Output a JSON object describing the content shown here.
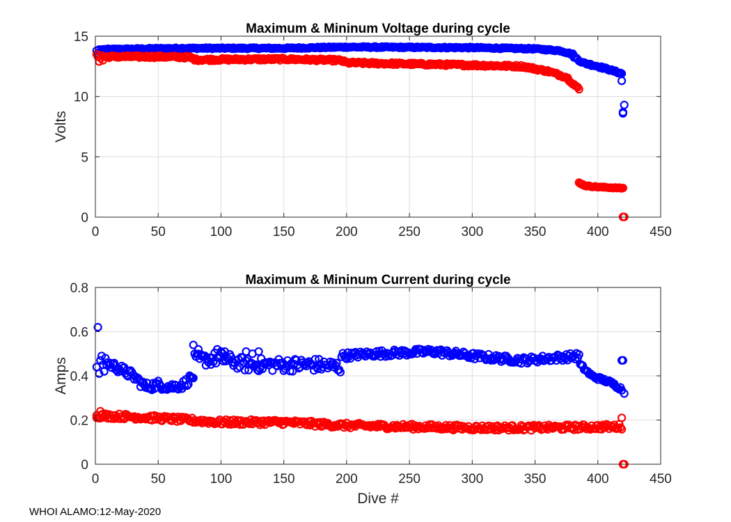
{
  "footer": "WHOI ALAMO:12-May-2020",
  "colors": {
    "max": "#0000ff",
    "min": "#ff0000",
    "grid": "#dcdcdc",
    "axis": "#262626"
  },
  "chart_data": [
    {
      "type": "scatter",
      "title": "Maximum & Mininum Voltage during cycle",
      "xlabel": "",
      "ylabel": "Volts",
      "xlim": [
        0,
        450
      ],
      "ylim": [
        0,
        15
      ],
      "xticks": [
        0,
        50,
        100,
        150,
        200,
        250,
        300,
        350,
        400,
        450
      ],
      "yticks": [
        0,
        5,
        10,
        15
      ],
      "grid": true,
      "series": [
        {
          "name": "Maximum",
          "color": "#0000ff",
          "segments": [
            {
              "x": [
                1,
                2,
                3,
                4,
                5,
                6
              ],
              "y": [
                13.8,
                13.6,
                13.9,
                13.7,
                13.9,
                13.85
              ]
            },
            {
              "x_start": 7,
              "x_end": 380,
              "step": 1,
              "keypoints": [
                [
                  7,
                  13.9
                ],
                [
                  70,
                  14.0
                ],
                [
                  150,
                  14.0
                ],
                [
                  200,
                  14.1
                ],
                [
                  300,
                  14.05
                ],
                [
                  350,
                  13.95
                ],
                [
                  370,
                  13.8
                ],
                [
                  380,
                  13.5
                ]
              ],
              "jitter": 0.06
            },
            {
              "x_start": 381,
              "x_end": 419,
              "step": 1,
              "keypoints": [
                [
                  381,
                  13.3
                ],
                [
                  388,
                  12.8
                ],
                [
                  400,
                  12.5
                ],
                [
                  410,
                  12.2
                ],
                [
                  419,
                  11.9
                ]
              ],
              "jitter": 0.08
            },
            {
              "x": [
                419,
                420,
                420,
                421
              ],
              "y": [
                11.3,
                8.6,
                8.7,
                9.3
              ]
            }
          ]
        },
        {
          "name": "Minimum",
          "color": "#ff0000",
          "segments": [
            {
              "x": [
                1,
                2,
                3,
                4,
                5,
                6
              ],
              "y": [
                13.5,
                13.3,
                12.9,
                13.2,
                13.4,
                13.0
              ]
            },
            {
              "x_start": 7,
              "x_end": 385,
              "step": 1,
              "keypoints": [
                [
                  7,
                  13.3
                ],
                [
                  50,
                  13.3
                ],
                [
                  75,
                  13.25
                ],
                [
                  80,
                  13.05
                ],
                [
                  150,
                  13.1
                ],
                [
                  195,
                  13.0
                ],
                [
                  200,
                  12.8
                ],
                [
                  250,
                  12.7
                ],
                [
                  300,
                  12.6
                ],
                [
                  340,
                  12.5
                ],
                [
                  360,
                  12.1
                ],
                [
                  375,
                  11.6
                ],
                [
                  385,
                  10.6
                ]
              ],
              "jitter": 0.1
            },
            {
              "x_start": 385,
              "x_end": 420,
              "step": 1,
              "keypoints": [
                [
                  385,
                  2.85
                ],
                [
                  390,
                  2.6
                ],
                [
                  400,
                  2.5
                ],
                [
                  410,
                  2.45
                ],
                [
                  420,
                  2.4
                ]
              ],
              "jitter": 0.04
            },
            {
              "x": [
                420,
                421
              ],
              "y": [
                0.02,
                0.02
              ]
            }
          ]
        }
      ]
    },
    {
      "type": "scatter",
      "title": "Maximum & Mininum Current during cycle",
      "xlabel": "Dive #",
      "ylabel": "Amps",
      "xlim": [
        0,
        450
      ],
      "ylim": [
        0,
        0.8
      ],
      "xticks": [
        0,
        50,
        100,
        150,
        200,
        250,
        300,
        350,
        400,
        450
      ],
      "yticks": [
        0,
        0.2,
        0.4,
        0.6,
        0.8
      ],
      "grid": true,
      "series": [
        {
          "name": "Maximum",
          "color": "#0000ff",
          "segments": [
            {
              "x": [
                1,
                2,
                3,
                4,
                5,
                6,
                7,
                8
              ],
              "y": [
                0.44,
                0.62,
                0.41,
                0.47,
                0.49,
                0.45,
                0.42,
                0.48
              ]
            },
            {
              "x_start": 9,
              "x_end": 78,
              "step": 1,
              "keypoints": [
                [
                  9,
                  0.46
                ],
                [
                  20,
                  0.43
                ],
                [
                  30,
                  0.4
                ],
                [
                  40,
                  0.35
                ],
                [
                  50,
                  0.36
                ],
                [
                  60,
                  0.35
                ],
                [
                  70,
                  0.36
                ],
                [
                  78,
                  0.4
                ]
              ],
              "jitter": 0.02
            },
            {
              "x_start": 79,
              "x_end": 195,
              "step": 1,
              "keypoints": [
                [
                  79,
                  0.47
                ],
                [
                  100,
                  0.48
                ],
                [
                  120,
                  0.45
                ],
                [
                  150,
                  0.45
                ],
                [
                  175,
                  0.45
                ],
                [
                  195,
                  0.44
                ]
              ],
              "jitter": 0.03
            },
            {
              "x": [
                78,
                82,
                97,
                100,
                103,
                120,
                125,
                130
              ],
              "y": [
                0.54,
                0.52,
                0.52,
                0.51,
                0.51,
                0.51,
                0.5,
                0.51
              ]
            },
            {
              "x_start": 196,
              "x_end": 385,
              "step": 1,
              "keypoints": [
                [
                  196,
                  0.49
                ],
                [
                  220,
                  0.5
                ],
                [
                  270,
                  0.51
                ],
                [
                  300,
                  0.49
                ],
                [
                  340,
                  0.47
                ],
                [
                  385,
                  0.49
                ]
              ],
              "jitter": 0.015
            },
            {
              "x_start": 386,
              "x_end": 419,
              "step": 1,
              "keypoints": [
                [
                  386,
                  0.45
                ],
                [
                  395,
                  0.4
                ],
                [
                  410,
                  0.37
                ],
                [
                  419,
                  0.34
                ]
              ],
              "jitter": 0.008
            },
            {
              "x": [
                419,
                420,
                421
              ],
              "y": [
                0.47,
                0.47,
                0.32
              ]
            }
          ]
        },
        {
          "name": "Minimum",
          "color": "#ff0000",
          "segments": [
            {
              "x_start": 1,
              "x_end": 419,
              "step": 1,
              "keypoints": [
                [
                  1,
                  0.22
                ],
                [
                  30,
                  0.215
                ],
                [
                  60,
                  0.205
                ],
                [
                  100,
                  0.19
                ],
                [
                  150,
                  0.19
                ],
                [
                  200,
                  0.175
                ],
                [
                  250,
                  0.17
                ],
                [
                  300,
                  0.165
                ],
                [
                  350,
                  0.165
                ],
                [
                  419,
                  0.17
                ]
              ],
              "jitter": 0.012
            },
            {
              "x": [
                1,
                4,
                8,
                419,
                420,
                421
              ],
              "y": [
                0.21,
                0.24,
                0.22,
                0.21,
                0.0,
                0.0
              ]
            }
          ]
        }
      ]
    }
  ]
}
